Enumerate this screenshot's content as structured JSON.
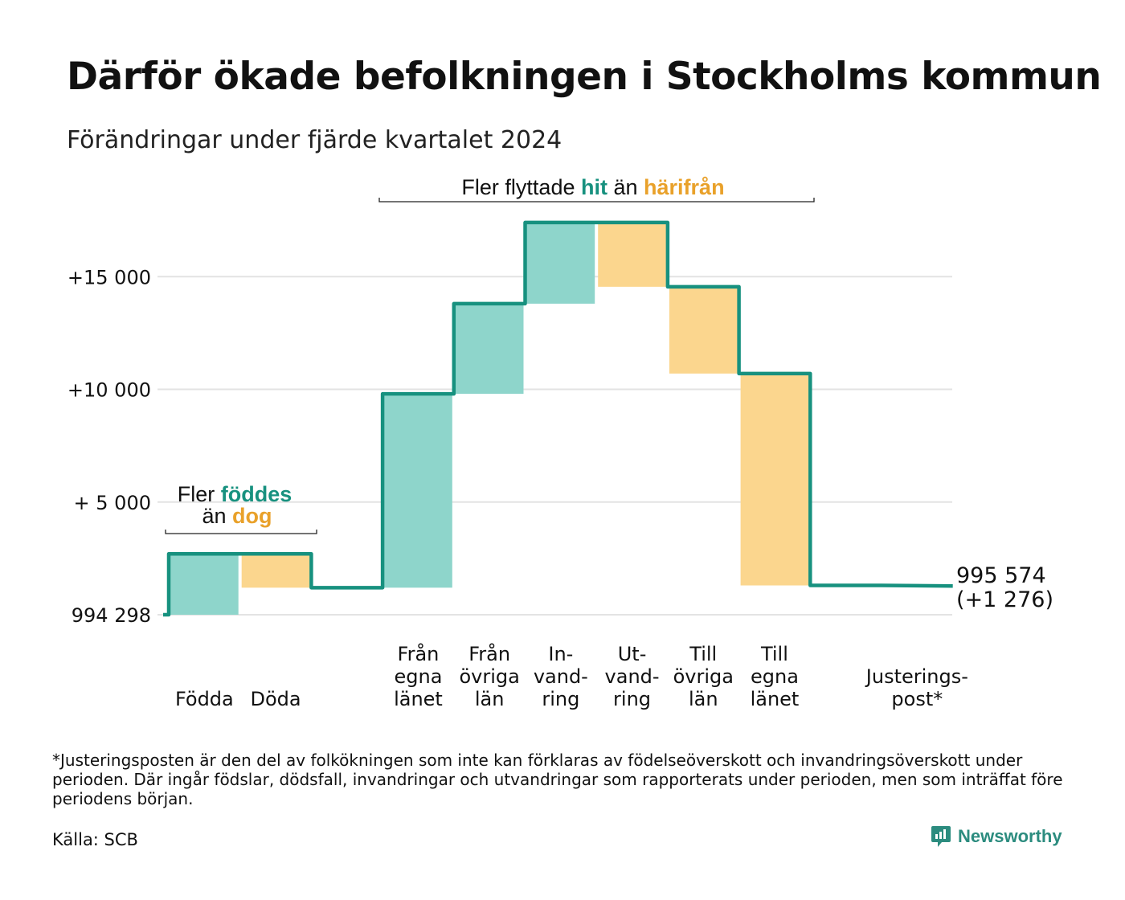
{
  "title": "Därför ökade befolkningen i Stockholms kommun",
  "subtitle": "Förändringar under fjärde kvartalet 2024",
  "chart_data": {
    "type": "waterfall",
    "baseline": 994298,
    "y_ticks": [
      {
        "label": "994 298",
        "offset": 0
      },
      {
        "label": "+ 5 000",
        "offset": 5000
      },
      {
        "label": "+10 000",
        "offset": 10000
      },
      {
        "label": "+15 000",
        "offset": 15000
      }
    ],
    "ylim_offset": [
      0,
      17500
    ],
    "grid": true,
    "steps": [
      {
        "label": [
          "Födda"
        ],
        "delta": 2700,
        "kind": "increase"
      },
      {
        "label": [
          "Döda"
        ],
        "delta": -1500,
        "kind": "decrease"
      },
      {
        "label": [
          ""
        ],
        "delta": 0,
        "kind": "gap"
      },
      {
        "label": [
          "Från",
          "egna",
          "länet"
        ],
        "delta": 8600,
        "kind": "increase"
      },
      {
        "label": [
          "Från",
          "övriga",
          "län"
        ],
        "delta": 4000,
        "kind": "increase"
      },
      {
        "label": [
          "In-",
          "vand-",
          "ring"
        ],
        "delta": 3600,
        "kind": "increase"
      },
      {
        "label": [
          "Ut-",
          "vand-",
          "ring"
        ],
        "delta": -2850,
        "kind": "decrease"
      },
      {
        "label": [
          "Till",
          "övriga",
          "län"
        ],
        "delta": -3850,
        "kind": "decrease"
      },
      {
        "label": [
          "Till",
          "egna",
          "länet"
        ],
        "delta": -9400,
        "kind": "decrease"
      },
      {
        "label": [
          ""
        ],
        "delta": 0,
        "kind": "gap"
      },
      {
        "label": [
          "Justerings-",
          "post*"
        ],
        "delta": -24,
        "kind": "adjustment"
      }
    ],
    "end_label": [
      "995 574",
      "(+1 276)"
    ],
    "annotations": {
      "natural": {
        "parts": [
          [
            "Fler ",
            "plain"
          ],
          [
            "föddes",
            "up"
          ],
          [
            "än ",
            "plain"
          ],
          [
            "dog",
            "down"
          ]
        ]
      },
      "migration": {
        "parts": [
          [
            "Fler flyttade ",
            "plain"
          ],
          [
            "hit",
            "up"
          ],
          [
            " än ",
            "plain"
          ],
          [
            "härifrån",
            "down"
          ]
        ]
      }
    },
    "colors": {
      "line": "#17917f",
      "increase_fill": "#8ed5cb",
      "decrease_fill": "#fbd68e",
      "up_text": "#17917f",
      "down_text": "#e9a12a",
      "grid": "#e3e3e3"
    }
  },
  "footnote": "*Justeringsposten är den del av folkökningen som inte kan förklaras av födelseöverskott och invandringsöverskott under perioden. Där ingår födslar, dödsfall, invandringar och utvandringar som rapporterats under perioden, men som inträffat före periodens början.",
  "source": "Källa: SCB",
  "brand": {
    "name": "Newsworthy",
    "icon": "chart-bubble-icon"
  }
}
